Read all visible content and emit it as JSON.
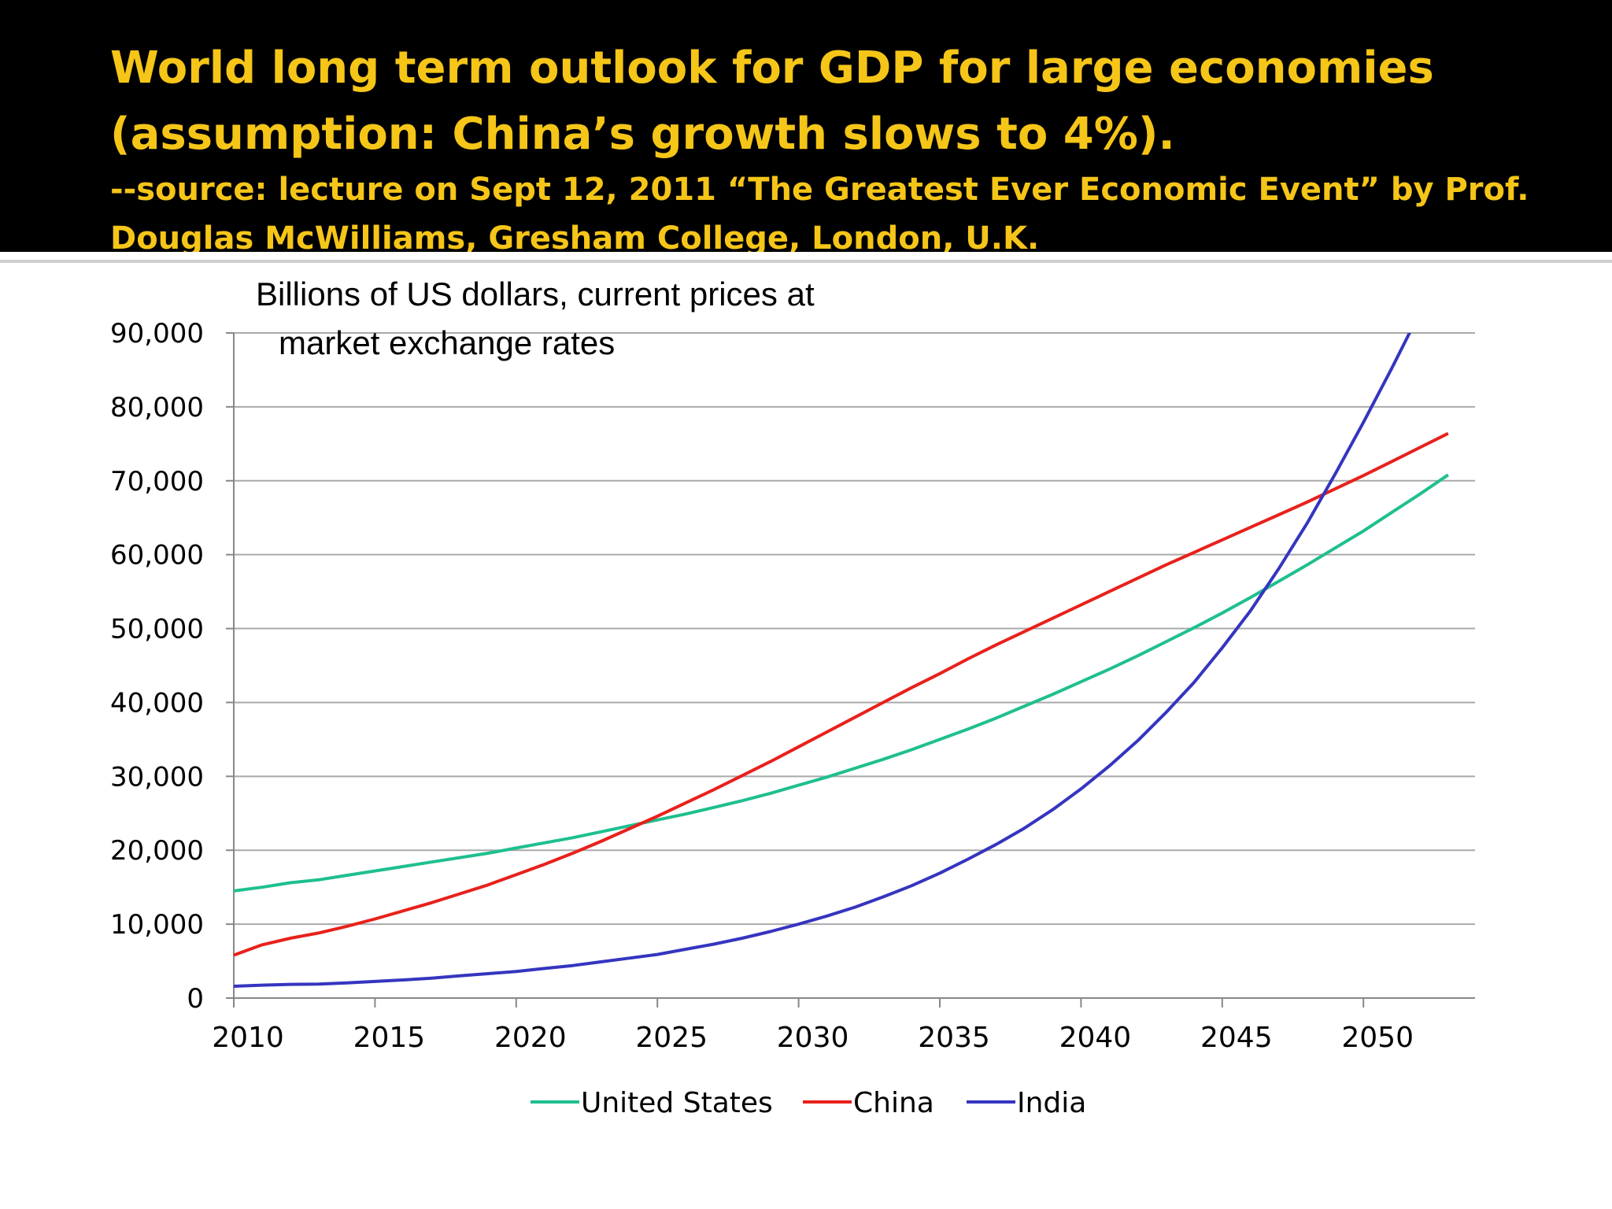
{
  "header": {
    "title_line1": "World long term outlook for GDP for large economies",
    "title_line2": "(assumption: China’s growth slows to 4%).",
    "subtitle_line1": "--source: lecture on Sept 12, 2011 “The Greatest Ever Economic Event”  by Prof.",
    "subtitle_line2": "Douglas McWilliams, Gresham College, London, U.K."
  },
  "chart_data": {
    "type": "line",
    "title": "World long term outlook for GDP for large economies (assumption: China’s growth slows to 4%).",
    "ylabel_line1": "Billions of US dollars, current prices at",
    "ylabel_line2": "market exchange rates",
    "xlabel": "",
    "ylim": [
      0,
      90000
    ],
    "xlim": [
      2010,
      2054
    ],
    "y_ticks": [
      0,
      10000,
      20000,
      30000,
      40000,
      50000,
      60000,
      70000,
      80000,
      90000
    ],
    "y_tick_labels": [
      "0",
      "10,000",
      "20,000",
      "30,000",
      "40,000",
      "50,000",
      "60,000",
      "70,000",
      "80,000",
      "90,000"
    ],
    "x_ticks": [
      2010,
      2015,
      2020,
      2025,
      2030,
      2035,
      2040,
      2045,
      2050
    ],
    "x_tick_labels": [
      "2010",
      "2015",
      "2020",
      "2025",
      "2030",
      "2035",
      "2040",
      "2045",
      "2050"
    ],
    "grid": true,
    "legend_position": "bottom",
    "x": [
      2010,
      2011,
      2012,
      2013,
      2014,
      2015,
      2016,
      2017,
      2018,
      2019,
      2020,
      2021,
      2022,
      2023,
      2024,
      2025,
      2026,
      2027,
      2028,
      2029,
      2030,
      2031,
      2032,
      2033,
      2034,
      2035,
      2036,
      2037,
      2038,
      2039,
      2040,
      2041,
      2042,
      2043,
      2044,
      2045,
      2046,
      2047,
      2048,
      2049,
      2050,
      2051,
      2052,
      2053
    ],
    "series": [
      {
        "name": "United States",
        "color": "#1fbf8f",
        "values": [
          14500,
          15000,
          15600,
          16000,
          16600,
          17200,
          17800,
          18400,
          19000,
          19600,
          20300,
          21000,
          21700,
          22500,
          23300,
          24100,
          24900,
          25800,
          26700,
          27700,
          28800,
          29900,
          31100,
          32300,
          33600,
          35000,
          36400,
          37900,
          39500,
          41100,
          42800,
          44500,
          46300,
          48200,
          50100,
          52100,
          54200,
          56400,
          58600,
          60900,
          63200,
          65700,
          68200,
          70800
        ]
      },
      {
        "name": "China",
        "color": "#e8211b",
        "values": [
          5800,
          7200,
          8100,
          8800,
          9700,
          10700,
          11800,
          12900,
          14100,
          15300,
          16700,
          18100,
          19600,
          21200,
          22900,
          24600,
          26400,
          28200,
          30100,
          32000,
          34000,
          36000,
          38000,
          40000,
          42000,
          43900,
          45900,
          47800,
          49600,
          51400,
          53200,
          55000,
          56800,
          58600,
          60300,
          62000,
          63700,
          65400,
          67100,
          68900,
          70700,
          72600,
          74500,
          76400
        ]
      },
      {
        "name": "India",
        "color": "#3535c0",
        "values": [
          1600,
          1750,
          1850,
          1900,
          2050,
          2250,
          2450,
          2700,
          3000,
          3300,
          3600,
          4000,
          4400,
          4900,
          5400,
          5900,
          6600,
          7300,
          8100,
          9000,
          10000,
          11100,
          12300,
          13700,
          15200,
          16900,
          18800,
          20800,
          23000,
          25500,
          28300,
          31400,
          34800,
          38600,
          42700,
          47400,
          52400,
          58100,
          64200,
          70900,
          77900,
          85200,
          92800,
          100700
        ]
      }
    ]
  }
}
